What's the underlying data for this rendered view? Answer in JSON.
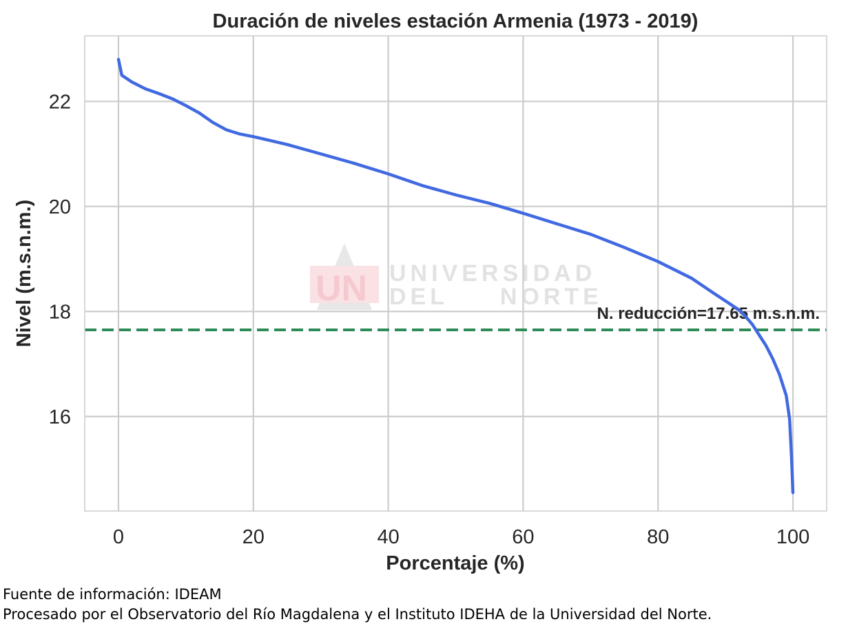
{
  "chart_data": {
    "type": "line",
    "title": "Duración de niveles estación Armenia (1973 - 2019)",
    "xlabel": "Porcentaje (%)",
    "ylabel": "Nivel (m.s.n.m.)",
    "xlim": [
      -5,
      105
    ],
    "ylim": [
      14.2,
      23.25
    ],
    "xticks": [
      0,
      20,
      40,
      60,
      80,
      100
    ],
    "yticks": [
      16,
      18,
      20,
      22
    ],
    "grid": true,
    "series": [
      {
        "color": "#4169e1",
        "x": [
          0,
          0.5,
          2,
          4,
          6,
          8,
          10,
          12,
          14,
          16,
          18,
          20,
          25,
          30,
          35,
          40,
          45,
          50,
          55,
          60,
          65,
          70,
          75,
          80,
          85,
          88,
          90,
          92,
          93,
          94,
          95,
          96,
          97,
          98,
          99,
          99.5,
          99.8,
          100
        ],
        "y": [
          22.8,
          22.5,
          22.37,
          22.24,
          22.15,
          22.05,
          21.92,
          21.78,
          21.6,
          21.46,
          21.38,
          21.33,
          21.18,
          21.0,
          20.82,
          20.62,
          20.4,
          20.22,
          20.06,
          19.87,
          19.67,
          19.47,
          19.22,
          18.95,
          18.63,
          18.37,
          18.2,
          18.03,
          17.9,
          17.75,
          17.55,
          17.35,
          17.1,
          16.8,
          16.4,
          15.95,
          15.2,
          14.55
        ]
      }
    ],
    "reference_line": {
      "y": 17.65,
      "color": "#2e8b57",
      "label": "N. reducción=17.65 m.s.n.m."
    }
  },
  "watermark": {
    "logo_text": "UN",
    "line1": "UNIVERSIDAD",
    "line2": "DEL NORTE"
  },
  "footer": {
    "source": "Fuente de información: IDEAM",
    "processed": "Procesado por el Observatorio del Río Magdalena y el Instituto IDEHA de la Universidad del Norte."
  }
}
